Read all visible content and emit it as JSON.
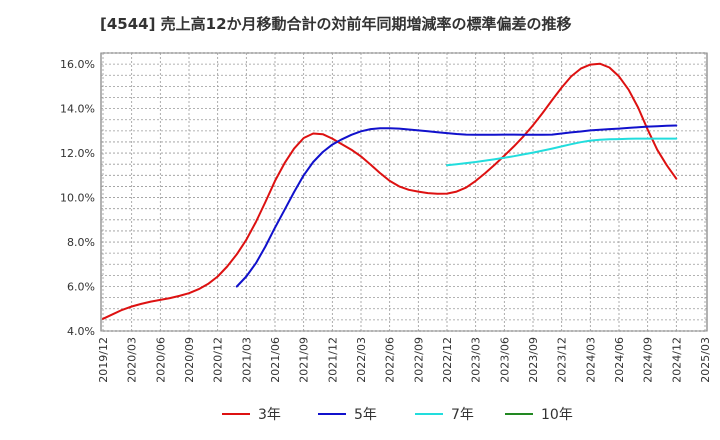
{
  "chart_data": {
    "type": "line",
    "title": "[4544]  売上高12か月移動合計の対前年同期増減率の標準偏差の推移",
    "xlabel": "",
    "ylabel": "",
    "ylim": [
      4.0,
      16.5
    ],
    "yticks": [
      4.0,
      6.0,
      8.0,
      10.0,
      12.0,
      14.0,
      16.0
    ],
    "ytick_labels": [
      "4.0%",
      "6.0%",
      "8.0%",
      "10.0%",
      "12.0%",
      "14.0%",
      "16.0%"
    ],
    "xticks": [
      "2019/12",
      "2020/03",
      "2020/06",
      "2020/09",
      "2020/12",
      "2021/03",
      "2021/06",
      "2021/09",
      "2021/12",
      "2022/03",
      "2022/06",
      "2022/09",
      "2022/12",
      "2023/03",
      "2023/06",
      "2023/09",
      "2023/12",
      "2024/03",
      "2024/06",
      "2024/09",
      "2024/12",
      "2025/03"
    ],
    "grid": true,
    "legend_position": "bottom",
    "series": [
      {
        "name": "3年",
        "color": "#dd1111",
        "points": [
          [
            "2019/12",
            4.55
          ],
          [
            "2020/01",
            4.75
          ],
          [
            "2020/02",
            4.95
          ],
          [
            "2020/03",
            5.1
          ],
          [
            "2020/04",
            5.22
          ],
          [
            "2020/05",
            5.32
          ],
          [
            "2020/06",
            5.4
          ],
          [
            "2020/07",
            5.48
          ],
          [
            "2020/08",
            5.58
          ],
          [
            "2020/09",
            5.7
          ],
          [
            "2020/10",
            5.88
          ],
          [
            "2020/11",
            6.12
          ],
          [
            "2020/12",
            6.45
          ],
          [
            "2021/01",
            6.9
          ],
          [
            "2021/02",
            7.45
          ],
          [
            "2021/03",
            8.1
          ],
          [
            "2021/04",
            8.9
          ],
          [
            "2021/05",
            9.8
          ],
          [
            "2021/06",
            10.75
          ],
          [
            "2021/07",
            11.55
          ],
          [
            "2021/08",
            12.2
          ],
          [
            "2021/09",
            12.68
          ],
          [
            "2021/10",
            12.88
          ],
          [
            "2021/11",
            12.85
          ],
          [
            "2021/12",
            12.65
          ],
          [
            "2022/01",
            12.4
          ],
          [
            "2022/02",
            12.15
          ],
          [
            "2022/03",
            11.85
          ],
          [
            "2022/04",
            11.48
          ],
          [
            "2022/05",
            11.1
          ],
          [
            "2022/06",
            10.75
          ],
          [
            "2022/07",
            10.5
          ],
          [
            "2022/08",
            10.35
          ],
          [
            "2022/09",
            10.27
          ],
          [
            "2022/10",
            10.2
          ],
          [
            "2022/11",
            10.17
          ],
          [
            "2022/12",
            10.18
          ],
          [
            "2023/01",
            10.27
          ],
          [
            "2023/02",
            10.45
          ],
          [
            "2023/03",
            10.75
          ],
          [
            "2023/04",
            11.1
          ],
          [
            "2023/05",
            11.48
          ],
          [
            "2023/06",
            11.88
          ],
          [
            "2023/07",
            12.3
          ],
          [
            "2023/08",
            12.75
          ],
          [
            "2023/09",
            13.25
          ],
          [
            "2023/10",
            13.8
          ],
          [
            "2023/11",
            14.38
          ],
          [
            "2023/12",
            14.95
          ],
          [
            "2024/01",
            15.45
          ],
          [
            "2024/02",
            15.8
          ],
          [
            "2024/03",
            15.98
          ],
          [
            "2024/04",
            16.02
          ],
          [
            "2024/05",
            15.85
          ],
          [
            "2024/06",
            15.45
          ],
          [
            "2024/07",
            14.85
          ],
          [
            "2024/08",
            14.05
          ],
          [
            "2024/09",
            13.05
          ],
          [
            "2024/10",
            12.15
          ],
          [
            "2024/11",
            11.45
          ],
          [
            "2024/12",
            10.85
          ]
        ]
      },
      {
        "name": "5年",
        "color": "#1111cc",
        "points": [
          [
            "2021/02",
            6.0
          ],
          [
            "2021/03",
            6.45
          ],
          [
            "2021/04",
            7.05
          ],
          [
            "2021/05",
            7.8
          ],
          [
            "2021/06",
            8.65
          ],
          [
            "2021/07",
            9.45
          ],
          [
            "2021/08",
            10.25
          ],
          [
            "2021/09",
            11.0
          ],
          [
            "2021/10",
            11.6
          ],
          [
            "2021/11",
            12.05
          ],
          [
            "2021/12",
            12.38
          ],
          [
            "2022/01",
            12.62
          ],
          [
            "2022/02",
            12.82
          ],
          [
            "2022/03",
            12.98
          ],
          [
            "2022/04",
            13.08
          ],
          [
            "2022/05",
            13.12
          ],
          [
            "2022/06",
            13.12
          ],
          [
            "2022/07",
            13.1
          ],
          [
            "2022/08",
            13.06
          ],
          [
            "2022/09",
            13.02
          ],
          [
            "2022/10",
            12.98
          ],
          [
            "2022/11",
            12.94
          ],
          [
            "2022/12",
            12.9
          ],
          [
            "2023/01",
            12.86
          ],
          [
            "2023/02",
            12.83
          ],
          [
            "2023/03",
            12.82
          ],
          [
            "2023/04",
            12.82
          ],
          [
            "2023/05",
            12.82
          ],
          [
            "2023/06",
            12.83
          ],
          [
            "2023/07",
            12.83
          ],
          [
            "2023/08",
            12.82
          ],
          [
            "2023/09",
            12.82
          ],
          [
            "2023/10",
            12.82
          ],
          [
            "2023/11",
            12.83
          ],
          [
            "2023/12",
            12.88
          ],
          [
            "2024/01",
            12.93
          ],
          [
            "2024/02",
            12.97
          ],
          [
            "2024/03",
            13.02
          ],
          [
            "2024/04",
            13.05
          ],
          [
            "2024/05",
            13.08
          ],
          [
            "2024/06",
            13.1
          ],
          [
            "2024/07",
            13.13
          ],
          [
            "2024/08",
            13.16
          ],
          [
            "2024/09",
            13.19
          ],
          [
            "2024/10",
            13.21
          ],
          [
            "2024/11",
            13.23
          ],
          [
            "2024/12",
            13.24
          ]
        ]
      },
      {
        "name": "7年",
        "color": "#22dddd",
        "points": [
          [
            "2022/12",
            11.45
          ],
          [
            "2023/01",
            11.5
          ],
          [
            "2023/02",
            11.55
          ],
          [
            "2023/03",
            11.6
          ],
          [
            "2023/04",
            11.66
          ],
          [
            "2023/05",
            11.72
          ],
          [
            "2023/06",
            11.79
          ],
          [
            "2023/07",
            11.86
          ],
          [
            "2023/08",
            11.94
          ],
          [
            "2023/09",
            12.02
          ],
          [
            "2023/10",
            12.11
          ],
          [
            "2023/11",
            12.2
          ],
          [
            "2023/12",
            12.3
          ],
          [
            "2024/01",
            12.4
          ],
          [
            "2024/02",
            12.49
          ],
          [
            "2024/03",
            12.56
          ],
          [
            "2024/04",
            12.6
          ],
          [
            "2024/05",
            12.62
          ],
          [
            "2024/06",
            12.63
          ],
          [
            "2024/07",
            12.64
          ],
          [
            "2024/08",
            12.65
          ],
          [
            "2024/09",
            12.65
          ],
          [
            "2024/10",
            12.65
          ],
          [
            "2024/11",
            12.65
          ],
          [
            "2024/12",
            12.65
          ]
        ]
      },
      {
        "name": "10年",
        "color": "#228822",
        "points": []
      }
    ]
  }
}
